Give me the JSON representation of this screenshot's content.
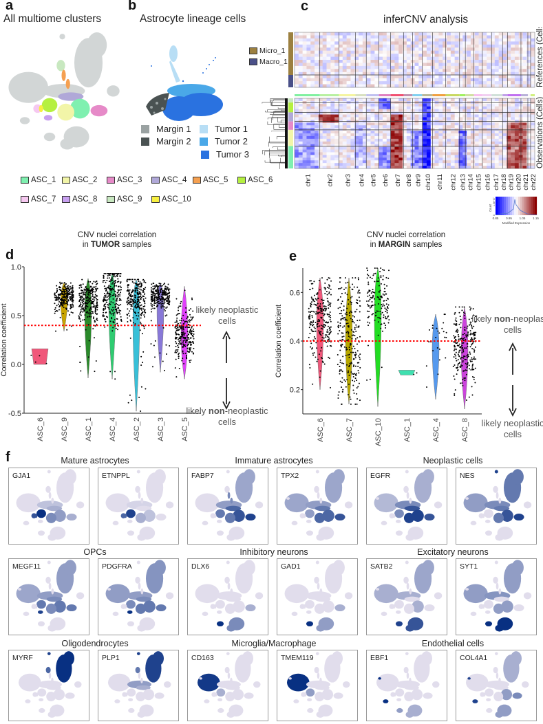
{
  "panel_a": {
    "label": "a",
    "title": "All multiome clusters",
    "legend": [
      {
        "name": "ASC_1",
        "color": "#7ff0b0"
      },
      {
        "name": "ASC_2",
        "color": "#f2f5a8"
      },
      {
        "name": "ASC_3",
        "color": "#e68ac8"
      },
      {
        "name": "ASC_4",
        "color": "#b0a8d8"
      },
      {
        "name": "ASC_5",
        "color": "#f5a050"
      },
      {
        "name": "ASC_6",
        "color": "#b5f040"
      },
      {
        "name": "ASC_7",
        "color": "#f6c8f0"
      },
      {
        "name": "ASC_8",
        "color": "#c8a0f0"
      },
      {
        "name": "ASC_9",
        "color": "#c8e8c0"
      },
      {
        "name": "ASC_10",
        "color": "#f8f040"
      }
    ]
  },
  "panel_b": {
    "label": "b",
    "title": "Astrocyte lineage cells",
    "legend": [
      {
        "name": "Margin 1",
        "color": "#9aa2a2"
      },
      {
        "name": "Margin 2",
        "color": "#4a5252"
      },
      {
        "name": "Tumor 1",
        "color": "#b8def5"
      },
      {
        "name": "Tumor 2",
        "color": "#4aa8e8"
      },
      {
        "name": "Tumor 3",
        "color": "#2a72e0"
      }
    ]
  },
  "panel_c": {
    "label": "c",
    "title": "inferCNV analysis",
    "reference_legend": [
      {
        "name": "Micro_1",
        "color": "#9c8040"
      },
      {
        "name": "Macro_1",
        "color": "#4a5088"
      }
    ],
    "references_label": "References (Cells)",
    "observations_label": "Observations (Cells)",
    "chromosomes": [
      "chr1",
      "chr2",
      "chr3",
      "chr4",
      "chr5",
      "chr6",
      "chr7",
      "chr8",
      "chr9",
      "chr10",
      "chr11",
      "chr12",
      "chr13",
      "chr14",
      "chr15",
      "chr16",
      "chr17",
      "chr18",
      "chr19",
      "chr20",
      "chr21",
      "chr22"
    ],
    "colorbar": {
      "ticks": [
        "0.85",
        "0.95",
        "1.05",
        "1.15"
      ],
      "count_label": "Count",
      "count_tick": "1.5e+07",
      "count_zero": "0",
      "xlabel": "Modified Expression",
      "low_color": "#0000ff",
      "mid_color": "#ffffff",
      "high_color": "#8b0000"
    }
  },
  "chart_data": [
    {
      "id": "d",
      "type": "violin",
      "label": "d",
      "title_line1": "CNV nuclei correlation",
      "title_pre": "in ",
      "title_bold": "TUMOR",
      "title_post": " samples",
      "ylabel": "Correlation coefficient",
      "ylim": [
        -0.5,
        1.0
      ],
      "yticks": [
        -0.5,
        0.0,
        0.5,
        1.0
      ],
      "ytick_labels": [
        "-0.5",
        "0.0",
        "0.5",
        "1.0"
      ],
      "threshold": 0.4,
      "threshold_color": "#ff0000",
      "annotation_top": {
        "pre": "likely ",
        "bold": "",
        "post": "neoplastic",
        "line2": "cells"
      },
      "annotation_bottom": {
        "pre": "likely ",
        "bold": "non",
        "post": "-neoplastic",
        "line2": "cells"
      },
      "categories": [
        "ASC_6",
        "ASC_9",
        "ASC_1",
        "ASC_4",
        "ASC_2",
        "ASC_3",
        "ASC_5"
      ],
      "series": [
        {
          "name": "ASC_6",
          "color": "#f0577a",
          "median": 0.1,
          "min": 0.0,
          "max": 0.16,
          "sd": 0.05,
          "n": 4
        },
        {
          "name": "ASC_9",
          "color": "#c9a400",
          "median": 0.7,
          "min": 0.34,
          "max": 0.84,
          "sd": 0.07,
          "n": 300
        },
        {
          "name": "ASC_1",
          "color": "#2a8a2a",
          "median": 0.65,
          "min": -0.14,
          "max": 0.88,
          "sd": 0.1,
          "n": 2500
        },
        {
          "name": "ASC_4",
          "color": "#2ecc71",
          "median": 0.72,
          "min": -0.15,
          "max": 0.93,
          "sd": 0.16,
          "n": 2500
        },
        {
          "name": "ASC_2",
          "color": "#38c0d8",
          "median": 0.67,
          "min": -0.48,
          "max": 0.87,
          "sd": 0.11,
          "n": 2500
        },
        {
          "name": "ASC_3",
          "color": "#8878d8",
          "median": 0.7,
          "min": -0.08,
          "max": 0.83,
          "sd": 0.07,
          "n": 800
        },
        {
          "name": "ASC_5",
          "color": "#e040fb",
          "median": 0.3,
          "min": -0.15,
          "max": 0.8,
          "sd": 0.13,
          "n": 400
        }
      ]
    },
    {
      "id": "e",
      "type": "violin",
      "label": "e",
      "title_line1": "CNV nuclei correlation",
      "title_pre": "in ",
      "title_bold": "MARGIN",
      "title_post": " samples",
      "ylabel": "Correlation coefficient",
      "ylim": [
        0.1,
        0.7
      ],
      "yticks": [
        0.2,
        0.4,
        0.6
      ],
      "ytick_labels": [
        "0.2",
        "0.4",
        "0.6"
      ],
      "threshold": 0.4,
      "threshold_color": "#ff0000",
      "annotation_top": {
        "pre": "likely ",
        "bold": "non",
        "post": "-neoplastic",
        "line2": "cells"
      },
      "annotation_bottom": {
        "pre": "likely ",
        "bold": "",
        "post": "neoplastic",
        "line2": "cells"
      },
      "categories": [
        "ASC_6",
        "ASC_7",
        "ASC_10",
        "ASC_1",
        "ASC_4",
        "ASC_8"
      ],
      "series": [
        {
          "name": "ASC_6",
          "color": "#f0577a",
          "median": 0.5,
          "min": 0.2,
          "max": 0.66,
          "sd": 0.08,
          "n": 500
        },
        {
          "name": "ASC_7",
          "color": "#b8a800",
          "median": 0.42,
          "min": 0.14,
          "max": 0.66,
          "sd": 0.13,
          "n": 400
        },
        {
          "name": "ASC_10",
          "color": "#22dd22",
          "median": 0.58,
          "min": 0.13,
          "max": 0.7,
          "sd": 0.06,
          "n": 150
        },
        {
          "name": "ASC_1",
          "color": "#40e0b0",
          "median": 0.27,
          "min": 0.26,
          "max": 0.28,
          "sd": 0.005,
          "n": 2
        },
        {
          "name": "ASC_4",
          "color": "#5599ee",
          "median": 0.4,
          "min": 0.16,
          "max": 0.51,
          "sd": 0.07,
          "n": 25
        },
        {
          "name": "ASC_8",
          "color": "#cc44dd",
          "median": 0.38,
          "min": 0.12,
          "max": 0.54,
          "sd": 0.07,
          "n": 250
        }
      ]
    }
  ],
  "panel_f": {
    "label": "f",
    "groups": [
      {
        "title": "Mature astrocytes",
        "genes": [
          "GJA1",
          "ETNPPL"
        ]
      },
      {
        "title": "Immature astrocytes",
        "genes": [
          "FABP7",
          "TPX2"
        ]
      },
      {
        "title": "Neoplastic cells",
        "genes": [
          "EGFR",
          "NES"
        ]
      },
      {
        "title": "OPCs",
        "genes": [
          "MEGF11",
          "PDGFRA"
        ]
      },
      {
        "title": "Inhibitory neurons",
        "genes": [
          "DLX6",
          "GAD1"
        ]
      },
      {
        "title": "Excitatory neurons",
        "genes": [
          "SATB2",
          "SYT1"
        ]
      },
      {
        "title": "Oligodendrocytes",
        "genes": [
          "MYRF",
          "PLP1"
        ]
      },
      {
        "title": "Microglia/Macrophage",
        "genes": [
          "CD163",
          "TMEM119"
        ]
      },
      {
        "title": "Endothelial cells",
        "genes": [
          "EBF1",
          "COL4A1"
        ]
      }
    ]
  }
}
